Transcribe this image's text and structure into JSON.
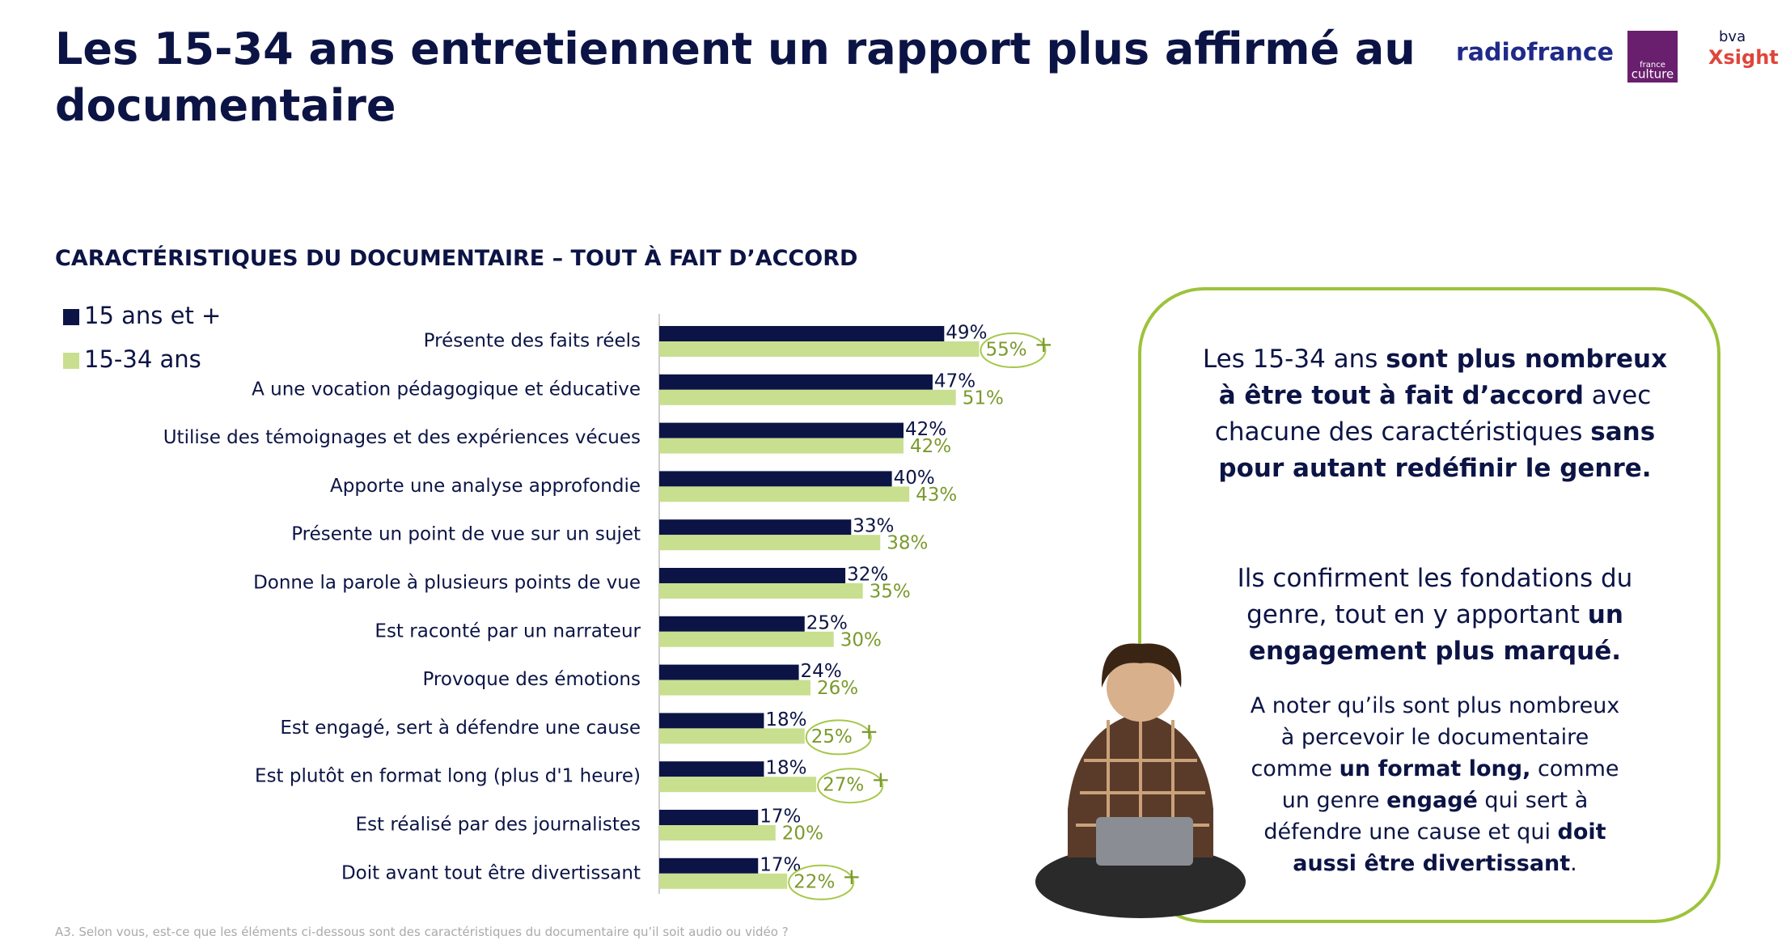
{
  "title": [
    "Les 15-34 ans entretiennent un rapport plus affirmé au",
    "documentaire"
  ],
  "logos": [
    "radiofrance",
    "france",
    "culture",
    "bva",
    "Xsight"
  ],
  "chart_data": {
    "type": "bar",
    "subtitle": "CARACTÉRISTIQUES DU DOCUMENTAIRE – TOUT À FAIT D’ACCORD",
    "categories": [
      "Présente des faits réels",
      "A une vocation pédagogique et éducative",
      "Utilise des témoignages et des expériences vécues",
      "Apporte une analyse approfondie",
      "Présente un point de vue sur un sujet",
      "Donne la parole à plusieurs points de vue",
      "Est raconté par un narrateur",
      "Provoque des émotions",
      "Est engagé, sert à défendre une cause",
      "Est plutôt en format long (plus d'1 heure)",
      "Est réalisé par des journalistes",
      "Doit avant tout être divertissant"
    ],
    "series": [
      {
        "name": "15 ans et +",
        "color": "#0c1445",
        "label_color": "#0c1445",
        "values": [
          49,
          47,
          42,
          40,
          33,
          32,
          25,
          24,
          18,
          18,
          17,
          17
        ],
        "value_labels": [
          "49%",
          "47%",
          "42%",
          "40%",
          "33%",
          "32%",
          "25%",
          "24%",
          "18%",
          "18%",
          "17%",
          "17%"
        ]
      },
      {
        "name": "15-34 ans",
        "color": "#c8df8f",
        "label_color": "#7b9a2c",
        "values": [
          55,
          51,
          42,
          43,
          38,
          35,
          30,
          26,
          25,
          27,
          20,
          22
        ],
        "value_labels": [
          "55%",
          "51%",
          "42%",
          "43%",
          "38%",
          "35%",
          "30%",
          "26%",
          "25%",
          "27%",
          "20%",
          "22%"
        ],
        "highlighted": [
          0,
          8,
          9,
          11
        ],
        "highlight_marker": "+"
      }
    ]
  },
  "callout": [
    [
      {
        "text": "Les 15-34 ans "
      },
      {
        "text": "sont plus nombreux à être tout à fait d’accord",
        "bold": true
      },
      {
        "text": " avec chacune des caractéristiques "
      },
      {
        "text": "sans pour autant redéfinir le genre.",
        "bold": true
      }
    ],
    [
      {
        "text": "Ils confirment les fondations du genre, tout en y apportant "
      },
      {
        "text": "un engagement plus marqué.",
        "bold": true
      }
    ],
    [
      {
        "text": "A noter qu’ils sont plus nombreux à percevoir le documentaire comme "
      },
      {
        "text": "un format long,",
        "bold": true
      },
      {
        "text": " comme un genre "
      },
      {
        "text": "engagé",
        "bold": true
      },
      {
        "text": " qui sert à défendre une cause et qui "
      },
      {
        "text": "doit aussi être divertissant",
        "bold": true
      },
      {
        "text": "."
      }
    ]
  ],
  "footnote": "A3. Selon vous, est-ce que les éléments ci-dessous sont des caractéristiques du documentaire qu’il soit audio ou vidéo ?"
}
